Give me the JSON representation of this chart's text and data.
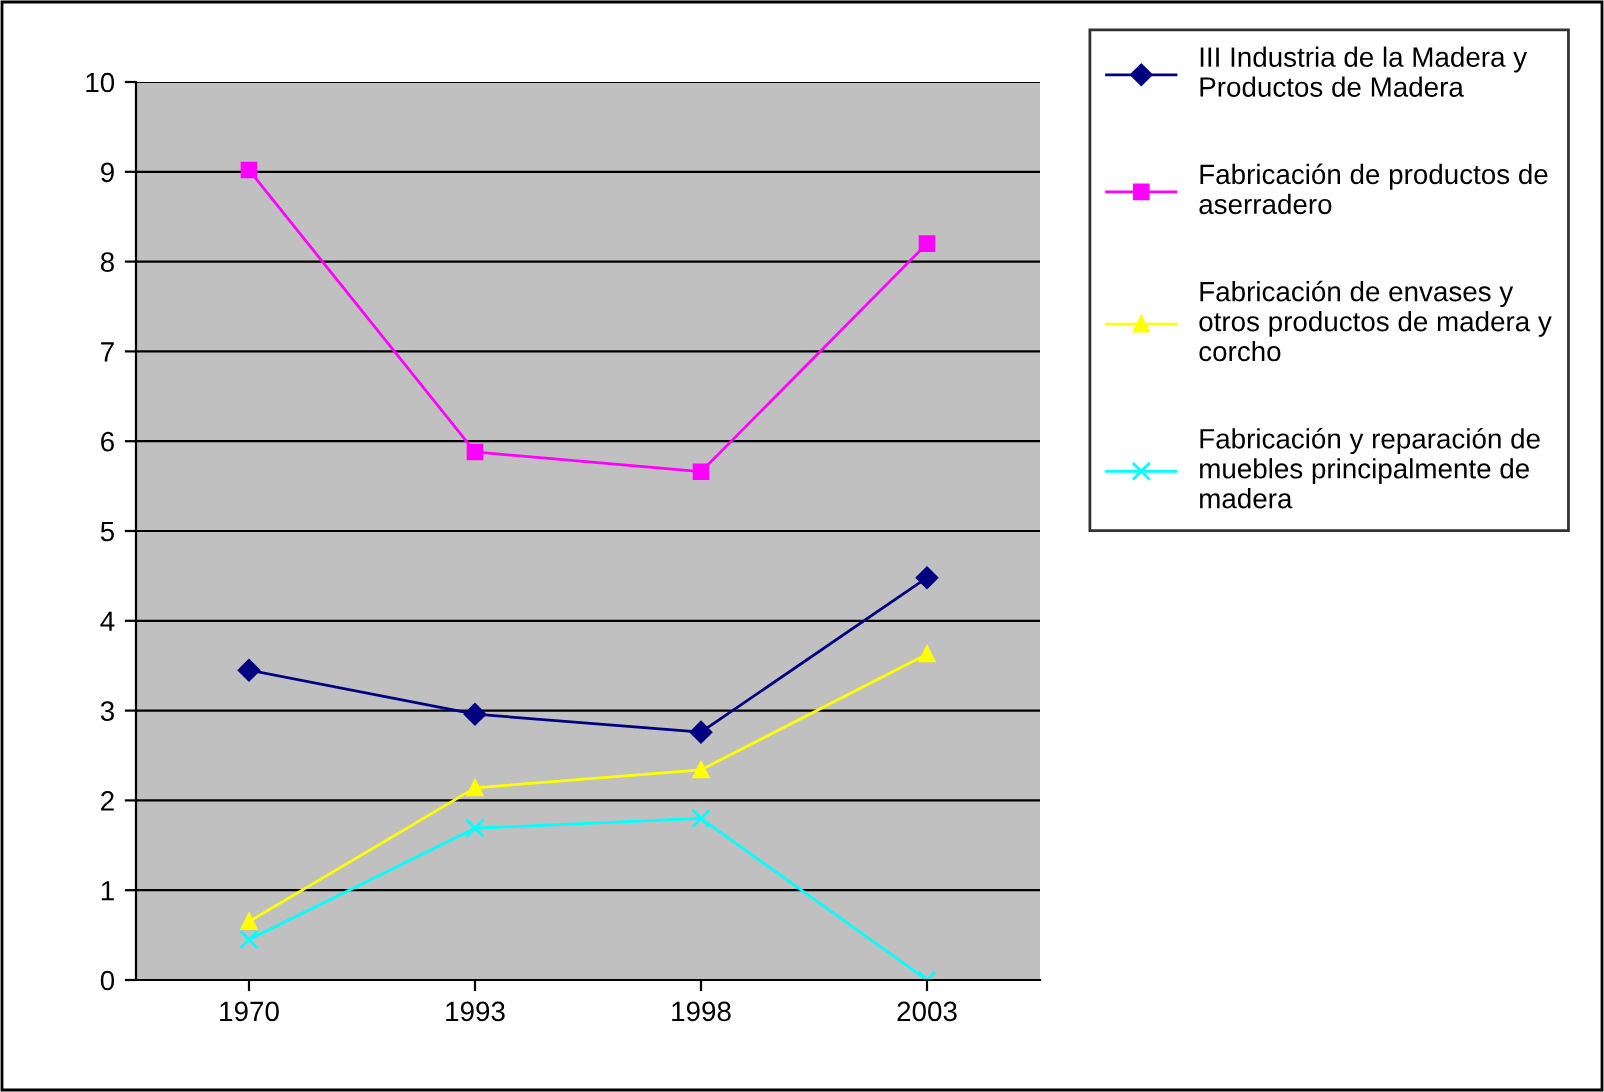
{
  "chart_data": {
    "type": "line",
    "categories": [
      "1970",
      "1993",
      "1998",
      "2003"
    ],
    "series": [
      {
        "name": "III Industria de la Madera y Productos de Madera",
        "color": "#000080",
        "marker": "diamond",
        "values": [
          3.45,
          2.96,
          2.76,
          4.48
        ]
      },
      {
        "name": "Fabricación de productos de aserradero",
        "color": "#ff00ff",
        "marker": "square",
        "values": [
          9.02,
          5.88,
          5.66,
          8.2
        ]
      },
      {
        "name": "Fabricación de envases y otros productos de madera y corcho",
        "color": "#ffff00",
        "marker": "triangle",
        "values": [
          0.65,
          2.14,
          2.34,
          3.63
        ]
      },
      {
        "name": "Fabricación y reparación de muebles principalmente de madera",
        "color": "#00ffff",
        "marker": "cross",
        "values": [
          0.45,
          1.69,
          1.8,
          0
        ]
      }
    ],
    "ylim": [
      0,
      10
    ],
    "yticks": [
      0,
      1,
      2,
      3,
      4,
      5,
      6,
      7,
      8,
      9,
      10
    ],
    "grid": "y",
    "legend": "right",
    "line_style": "solid"
  }
}
